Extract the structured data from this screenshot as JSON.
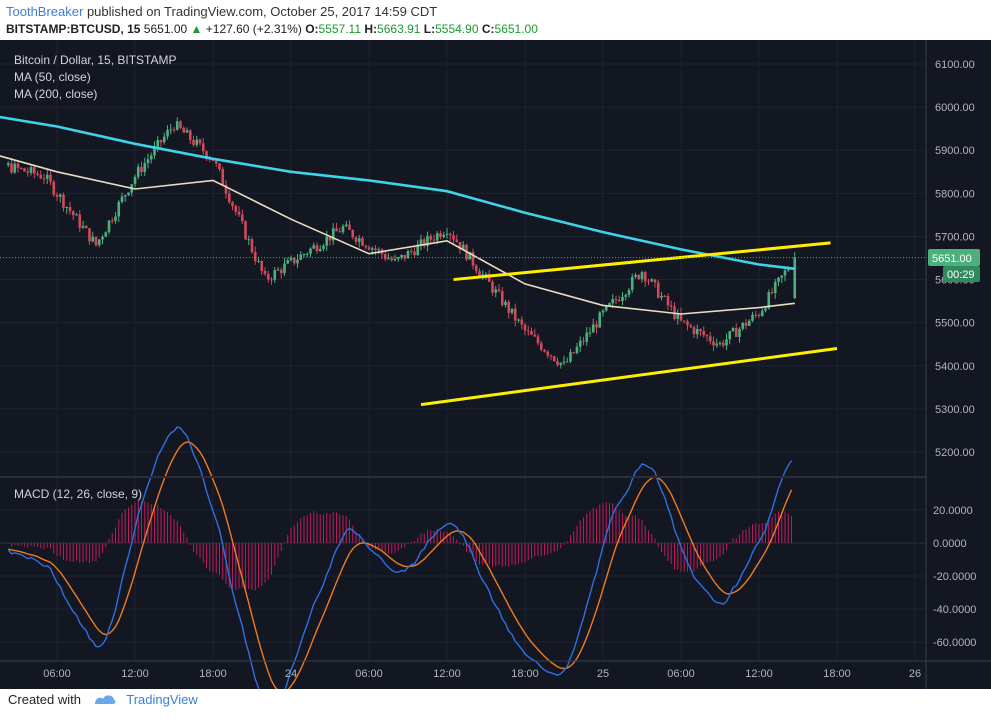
{
  "header": {
    "author": "ToothBreaker",
    "published_text": "published on TradingView.com, October 25, 2017 14:59 CDT",
    "symbol_line": "BITSTAMP:BTCUSD, 15",
    "last_price": "5651.00",
    "change_arrow": "▲",
    "change": "+127.60 (+2.31%)",
    "o_label": "O:",
    "o_value": "5557.11",
    "h_label": "H:",
    "h_value": "5663.91",
    "l_label": "L:",
    "l_value": "5554.90",
    "c_label": "C:",
    "c_value": "5651.00"
  },
  "price_pane": {
    "legend": [
      "Bitcoin / Dollar, 15, BITSTAMP",
      "MA (50, close)",
      "MA (200, close)"
    ],
    "y_ticks": [
      "6100.00",
      "6000.00",
      "5900.00",
      "5800.00",
      "5700.00",
      "5600.00",
      "5500.00",
      "5400.00",
      "5300.00",
      "5200.00"
    ],
    "last_price_label": "5651.00",
    "countdown_label": "00:29"
  },
  "macd_pane": {
    "legend": "MACD (12, 26, close, 9)",
    "y_ticks": [
      "20.0000",
      "0.0000",
      "-20.0000",
      "-40.0000",
      "-60.0000"
    ]
  },
  "x_axis": {
    "ticks": [
      "06:00",
      "12:00",
      "18:00",
      "24",
      "06:00",
      "12:00",
      "18:00",
      "25",
      "06:00",
      "12:00",
      "18:00",
      "26"
    ]
  },
  "colors": {
    "background": "#131722",
    "up": "#4caf7d",
    "down": "#d1495b",
    "ma50": "#eadcc0",
    "ma200": "#3ed3e8",
    "macd_line": "#2f6fe0",
    "signal_line": "#f07a22",
    "histogram": "#c2185b",
    "trendline": "#ffee00"
  },
  "footer": {
    "created_with": "Created with",
    "brand": "TradingView"
  },
  "chart_data": {
    "type": "candlestick",
    "title": "Bitcoin / Dollar, 15, BITSTAMP",
    "ylim": [
      5150,
      6150
    ],
    "macd_ylim": [
      -70,
      30
    ],
    "ohlc_anchor_points": [
      {
        "x": "Oct 23 00:00",
        "close": 5880
      },
      {
        "x": "Oct 23 05:00",
        "close": 5840
      },
      {
        "x": "Oct 23 09:00",
        "close": 5680
      },
      {
        "x": "Oct 23 12:00",
        "close": 5840
      },
      {
        "x": "Oct 23 15:00",
        "close": 5960
      },
      {
        "x": "Oct 23 18:00",
        "close": 5880
      },
      {
        "x": "Oct 23 22:00",
        "close": 5600
      },
      {
        "x": "Oct 24 04:00",
        "close": 5720
      },
      {
        "x": "Oct 24 08:00",
        "close": 5640
      },
      {
        "x": "Oct 24 12:00",
        "close": 5720
      },
      {
        "x": "Oct 24 15:00",
        "close": 5600
      },
      {
        "x": "Oct 24 18:00",
        "close": 5480
      },
      {
        "x": "Oct 24 21:00",
        "close": 5400
      },
      {
        "x": "Oct 25 00:00",
        "close": 5520
      },
      {
        "x": "Oct 25 03:00",
        "close": 5620
      },
      {
        "x": "Oct 25 06:00",
        "close": 5500
      },
      {
        "x": "Oct 25 09:00",
        "close": 5450
      },
      {
        "x": "Oct 25 12:00",
        "close": 5523
      },
      {
        "x": "Oct 25 14:45",
        "open": 5557.11,
        "high": 5663.91,
        "low": 5554.9,
        "close": 5651.0
      }
    ],
    "series": [
      {
        "name": "MA (50, close)",
        "values": [
          [
            "Oct 23 00:00",
            5900
          ],
          [
            "Oct 23 06:00",
            5850
          ],
          [
            "Oct 23 12:00",
            5810
          ],
          [
            "Oct 23 18:00",
            5830
          ],
          [
            "Oct 24 00:00",
            5740
          ],
          [
            "Oct 24 06:00",
            5660
          ],
          [
            "Oct 24 12:00",
            5690
          ],
          [
            "Oct 24 18:00",
            5590
          ],
          [
            "Oct 25 00:00",
            5540
          ],
          [
            "Oct 25 06:00",
            5520
          ],
          [
            "Oct 25 12:00",
            5535
          ],
          [
            "Oct 25 14:45",
            5545
          ]
        ]
      },
      {
        "name": "MA (200, close)",
        "values": [
          [
            "Oct 23 00:00",
            5985
          ],
          [
            "Oct 23 06:00",
            5955
          ],
          [
            "Oct 23 12:00",
            5915
          ],
          [
            "Oct 23 18:00",
            5880
          ],
          [
            "Oct 24 00:00",
            5850
          ],
          [
            "Oct 24 06:00",
            5830
          ],
          [
            "Oct 24 12:00",
            5805
          ],
          [
            "Oct 24 18:00",
            5755
          ],
          [
            "Oct 25 00:00",
            5710
          ],
          [
            "Oct 25 06:00",
            5670
          ],
          [
            "Oct 25 12:00",
            5635
          ],
          [
            "Oct 25 14:45",
            5625
          ]
        ]
      }
    ],
    "trendlines": [
      {
        "from": [
          "Oct 24 10:00",
          5310
        ],
        "to": [
          "Oct 25 18:00",
          5440
        ]
      },
      {
        "from": [
          "Oct 24 12:30",
          5600
        ],
        "to": [
          "Oct 25 17:30",
          5685
        ]
      }
    ]
  }
}
